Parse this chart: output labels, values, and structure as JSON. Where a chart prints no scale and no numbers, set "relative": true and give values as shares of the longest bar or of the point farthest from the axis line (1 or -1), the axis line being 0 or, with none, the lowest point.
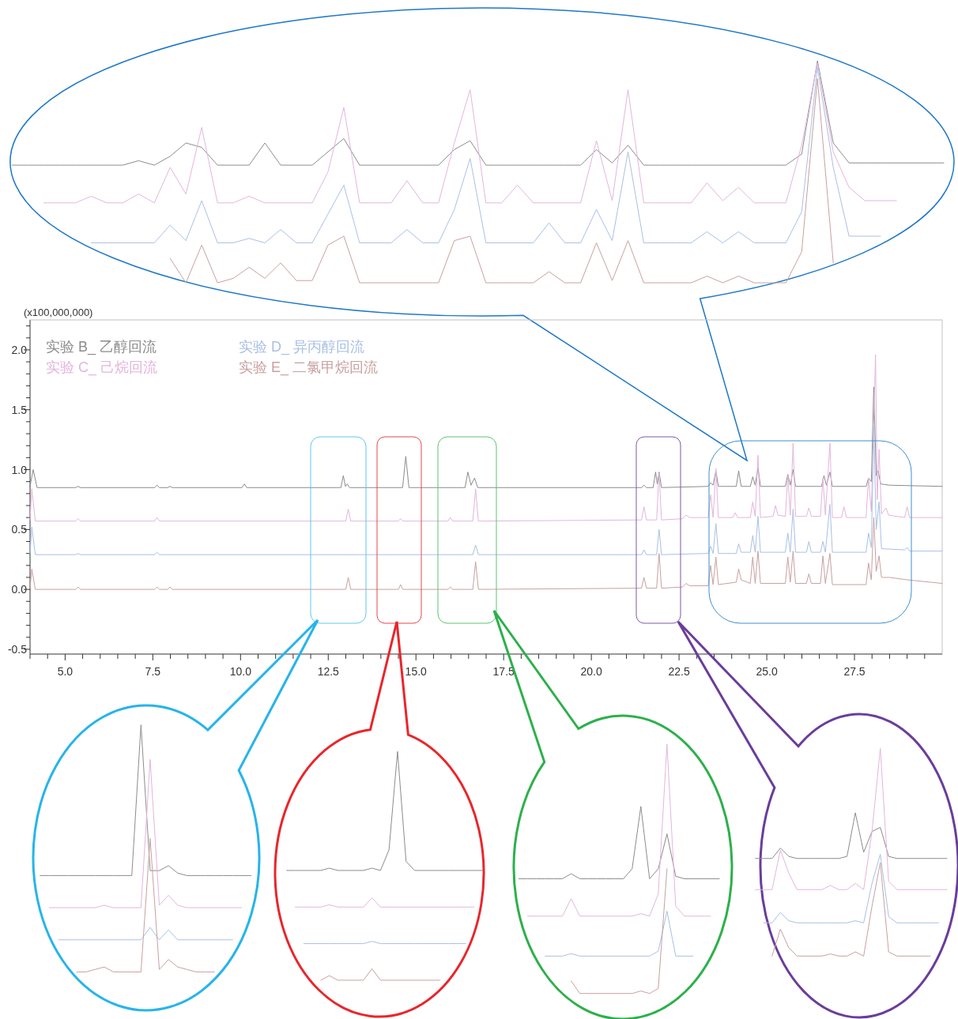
{
  "chart_data": [
    {
      "type": "line",
      "relative": true,
      "categories": [
        null,
        null,
        null,
        null,
        null,
        null,
        null,
        null,
        null,
        null,
        null,
        null,
        null,
        null,
        null,
        null,
        null,
        null,
        null,
        null,
        null,
        null,
        null,
        null,
        null,
        null,
        null,
        null,
        null,
        null,
        null,
        null,
        null,
        null,
        null,
        null,
        null,
        null,
        null,
        null,
        null,
        null,
        null,
        null,
        null,
        null,
        null,
        null,
        null,
        null,
        null,
        null,
        null,
        null,
        null,
        null,
        null,
        null,
        null,
        null
      ],
      "series": [
        {
          "color": "#8c8c8c",
          "values": [
            0.53,
            0.53,
            0.53,
            0.53,
            0.53,
            0.53,
            0.53,
            0.53,
            0.55,
            0.53,
            0.57,
            0.63,
            0.61,
            0.53,
            0.53,
            0.53,
            0.63,
            0.53,
            0.53,
            0.53,
            0.59,
            0.65,
            0.53,
            0.53,
            0.53,
            0.53,
            0.53,
            0.53,
            0.6,
            0.64,
            0.53,
            0.53,
            0.53,
            0.53,
            0.53,
            0.53,
            0.53,
            0.6,
            0.54,
            0.62,
            0.53,
            0.53,
            0.53,
            0.53,
            0.53,
            0.53,
            0.53,
            0.53,
            0.53,
            0.53,
            0.58,
            1.0,
            0.63,
            0.54,
            0.54,
            0.54,
            0.54,
            0.54,
            0.54,
            0.54
          ]
        },
        {
          "color": "#e3b5dc",
          "values": [
            null,
            null,
            0.36,
            0.36,
            0.36,
            0.39,
            0.36,
            0.36,
            0.4,
            0.36,
            0.52,
            0.4,
            0.7,
            0.36,
            0.36,
            0.39,
            0.36,
            0.36,
            0.36,
            0.36,
            0.5,
            0.79,
            0.36,
            0.36,
            0.36,
            0.46,
            0.36,
            0.36,
            0.63,
            0.87,
            0.36,
            0.36,
            0.44,
            0.36,
            0.36,
            0.36,
            0.36,
            0.64,
            0.37,
            0.87,
            0.36,
            0.36,
            0.36,
            0.36,
            0.45,
            0.37,
            0.43,
            0.36,
            0.36,
            0.36,
            0.62,
            0.99,
            0.59,
            0.43,
            0.37,
            0.37,
            0.37,
            null,
            null,
            null
          ]
        },
        {
          "color": "#a9bfe6",
          "values": [
            null,
            null,
            null,
            null,
            null,
            0.18,
            0.18,
            0.18,
            0.18,
            0.18,
            0.26,
            0.19,
            0.37,
            0.18,
            0.18,
            0.2,
            0.18,
            0.24,
            0.18,
            0.18,
            0.31,
            0.44,
            0.18,
            0.18,
            0.18,
            0.24,
            0.18,
            0.18,
            0.33,
            0.56,
            0.18,
            0.18,
            0.18,
            0.18,
            0.27,
            0.18,
            0.18,
            0.33,
            0.19,
            0.59,
            0.18,
            0.18,
            0.18,
            0.18,
            0.23,
            0.18,
            0.23,
            0.18,
            0.18,
            0.18,
            0.32,
            0.97,
            0.52,
            0.21,
            0.21,
            0.21,
            null,
            null,
            null,
            null
          ]
        },
        {
          "color": "#c9a0a0",
          "values": [
            null,
            null,
            null,
            null,
            null,
            null,
            null,
            null,
            null,
            null,
            0.11,
            0.0,
            0.17,
            0.0,
            0.02,
            0.07,
            0.02,
            0.09,
            0.01,
            0.01,
            0.17,
            0.21,
            0.0,
            0.0,
            0.0,
            0.0,
            0.0,
            0.0,
            0.19,
            0.21,
            0.0,
            0.0,
            0.0,
            0.0,
            0.05,
            0.0,
            0.0,
            0.18,
            0.01,
            0.19,
            0.0,
            0.0,
            0.0,
            0.0,
            0.03,
            0.0,
            0.03,
            0.0,
            0.0,
            0.0,
            0.14,
            0.92,
            0.09,
            null,
            null,
            null,
            null,
            null,
            null,
            null
          ]
        }
      ]
    },
    {
      "type": "line",
      "ylabel": "(x100,000,000)",
      "legend": "top left",
      "xlim": [
        4,
        30
      ],
      "ylim": [
        -0.54,
        2.25
      ],
      "xticks": [
        {
          "value": 4,
          "label": null
        },
        {
          "value": 4.5,
          "label": null
        },
        {
          "value": 5,
          "label": "5.0"
        },
        {
          "value": 5.5,
          "label": null
        },
        {
          "value": 6,
          "label": null
        },
        {
          "value": 6.5,
          "label": null
        },
        {
          "value": 7,
          "label": null
        },
        {
          "value": 7.5,
          "label": "7.5"
        },
        {
          "value": 8,
          "label": null
        },
        {
          "value": 8.5,
          "label": null
        },
        {
          "value": 9,
          "label": null
        },
        {
          "value": 9.5,
          "label": null
        },
        {
          "value": 10,
          "label": "10.0"
        },
        {
          "value": 10.5,
          "label": null
        },
        {
          "value": 11,
          "label": null
        },
        {
          "value": 11.5,
          "label": null
        },
        {
          "value": 12,
          "label": null
        },
        {
          "value": 12.5,
          "label": "12.5"
        },
        {
          "value": 13,
          "label": null
        },
        {
          "value": 13.5,
          "label": null
        },
        {
          "value": 14,
          "label": null
        },
        {
          "value": 14.5,
          "label": null
        },
        {
          "value": 15,
          "label": "15.0"
        },
        {
          "value": 15.5,
          "label": null
        },
        {
          "value": 16,
          "label": null
        },
        {
          "value": 16.5,
          "label": null
        },
        {
          "value": 17,
          "label": null
        },
        {
          "value": 17.5,
          "label": "17.5"
        },
        {
          "value": 18,
          "label": null
        },
        {
          "value": 18.5,
          "label": null
        },
        {
          "value": 19,
          "label": null
        },
        {
          "value": 19.5,
          "label": null
        },
        {
          "value": 20,
          "label": "20.0"
        },
        {
          "value": 20.5,
          "label": null
        },
        {
          "value": 21,
          "label": null
        },
        {
          "value": 21.5,
          "label": null
        },
        {
          "value": 22,
          "label": null
        },
        {
          "value": 22.5,
          "label": "22.5"
        },
        {
          "value": 23,
          "label": null
        },
        {
          "value": 23.5,
          "label": null
        },
        {
          "value": 24,
          "label": null
        },
        {
          "value": 24.5,
          "label": null
        },
        {
          "value": 25,
          "label": "25.0"
        },
        {
          "value": 25.5,
          "label": null
        },
        {
          "value": 26,
          "label": null
        },
        {
          "value": 26.5,
          "label": null
        },
        {
          "value": 27,
          "label": null
        },
        {
          "value": 27.5,
          "label": "27.5"
        },
        {
          "value": 28,
          "label": null
        },
        {
          "value": 28.5,
          "label": null
        },
        {
          "value": 29,
          "label": null
        },
        {
          "value": 29.5,
          "label": null
        }
      ],
      "yticks": [
        {
          "value": -0.5,
          "label": "-0.5"
        },
        {
          "value": -0.4,
          "label": null
        },
        {
          "value": -0.3,
          "label": null
        },
        {
          "value": -0.2,
          "label": null
        },
        {
          "value": -0.1,
          "label": null
        },
        {
          "value": 0,
          "label": "0.0"
        },
        {
          "value": 0.1,
          "label": null
        },
        {
          "value": 0.2,
          "label": null
        },
        {
          "value": 0.3,
          "label": null
        },
        {
          "value": 0.4,
          "label": null
        },
        {
          "value": 0.5,
          "label": "0.5"
        },
        {
          "value": 0.6,
          "label": null
        },
        {
          "value": 0.7,
          "label": null
        },
        {
          "value": 0.8,
          "label": null
        },
        {
          "value": 0.9,
          "label": null
        },
        {
          "value": 1,
          "label": "1.0"
        },
        {
          "value": 1.1,
          "label": null
        },
        {
          "value": 1.2,
          "label": null
        },
        {
          "value": 1.3,
          "label": null
        },
        {
          "value": 1.4,
          "label": null
        },
        {
          "value": 1.5,
          "label": "1.5"
        },
        {
          "value": 1.6,
          "label": null
        },
        {
          "value": 1.7,
          "label": null
        },
        {
          "value": 1.8,
          "label": null
        },
        {
          "value": 1.9,
          "label": null
        },
        {
          "value": 2,
          "label": "2.0"
        },
        {
          "value": 2.1,
          "label": null
        },
        {
          "value": 2.2,
          "label": null
        }
      ],
      "series": [
        {
          "name": "实验 B_ 乙醇回流",
          "color": "#8c8c8c",
          "x": [
            4.0,
            4.09,
            4.2,
            5.3,
            5.37,
            5.44,
            7.55,
            7.62,
            7.69,
            7.92,
            7.99,
            8.06,
            10.04,
            10.11,
            10.18,
            12.86,
            12.93,
            12.99,
            13.04,
            13.11,
            14.62,
            14.71,
            14.8,
            16.4,
            16.48,
            16.57,
            16.67,
            16.76,
            21.43,
            21.5,
            21.57,
            21.76,
            21.83,
            21.88,
            21.93,
            22.0,
            23.33,
            23.4,
            23.47,
            23.55,
            23.62,
            24.13,
            24.2,
            24.27,
            24.53,
            24.6,
            24.67,
            24.75,
            24.82,
            25.53,
            25.6,
            25.67,
            25.75,
            25.82,
            26.56,
            26.63,
            26.7,
            26.8,
            26.87,
            27.83,
            27.9,
            27.98,
            28.05,
            28.12,
            28.17,
            28.25,
            28.5,
            30.0
          ],
          "values": [
            0.86,
            1.0,
            0.85,
            0.85,
            0.86,
            0.85,
            0.85,
            0.87,
            0.85,
            0.85,
            0.86,
            0.85,
            0.85,
            0.88,
            0.85,
            0.85,
            0.95,
            0.86,
            0.88,
            0.85,
            0.85,
            1.11,
            0.85,
            0.85,
            0.98,
            0.87,
            0.93,
            0.85,
            0.85,
            0.87,
            0.85,
            0.85,
            0.98,
            0.88,
            0.98,
            0.85,
            0.86,
            0.89,
            0.87,
            0.99,
            0.86,
            0.86,
            0.99,
            0.86,
            0.86,
            0.94,
            0.87,
            1.02,
            0.86,
            0.86,
            0.96,
            0.87,
            1.0,
            0.86,
            0.86,
            0.95,
            0.87,
            0.98,
            0.86,
            0.86,
            0.93,
            0.9,
            1.69,
            0.95,
            0.99,
            0.88,
            0.87,
            0.86
          ]
        },
        {
          "name": "实验 C_ 己烷回流",
          "color": "#e3b5dc",
          "x": [
            4.0,
            4.05,
            4.15,
            5.3,
            5.37,
            5.44,
            7.55,
            7.62,
            7.69,
            13.0,
            13.07,
            13.14,
            14.5,
            14.56,
            14.63,
            15.91,
            15.98,
            16.05,
            16.62,
            16.7,
            16.78,
            21.43,
            21.5,
            21.57,
            21.86,
            21.93,
            22.0,
            22.6,
            22.7,
            22.8,
            23.33,
            23.4,
            23.47,
            23.55,
            23.62,
            24.03,
            24.1,
            24.17,
            24.53,
            24.6,
            24.67,
            24.75,
            24.82,
            25.18,
            25.25,
            25.32,
            25.53,
            25.6,
            25.67,
            25.75,
            25.82,
            26.13,
            26.2,
            26.27,
            26.53,
            26.6,
            26.67,
            26.8,
            26.87,
            27.13,
            27.2,
            27.27,
            27.83,
            27.9,
            27.98,
            28.1,
            28.15,
            28.2,
            28.27,
            28.4,
            28.47,
            28.93,
            29.0,
            29.07,
            30.0
          ],
          "values": [
            0.58,
            0.84,
            0.57,
            0.57,
            0.59,
            0.57,
            0.57,
            0.6,
            0.57,
            0.57,
            0.67,
            0.57,
            0.57,
            0.59,
            0.57,
            0.57,
            0.6,
            0.57,
            0.57,
            0.84,
            0.57,
            0.58,
            0.69,
            0.58,
            0.58,
            0.97,
            0.58,
            0.59,
            0.62,
            0.6,
            0.6,
            0.79,
            0.6,
            1.01,
            0.6,
            0.6,
            0.64,
            0.6,
            0.6,
            0.73,
            0.61,
            1.12,
            0.6,
            0.61,
            0.7,
            0.62,
            0.61,
            0.95,
            0.62,
            1.22,
            0.61,
            0.61,
            0.68,
            0.61,
            0.61,
            0.93,
            0.62,
            1.22,
            0.6,
            0.6,
            0.69,
            0.6,
            0.6,
            0.93,
            0.65,
            1.96,
            0.75,
            1.17,
            0.63,
            0.68,
            0.62,
            0.6,
            0.69,
            0.6,
            0.6
          ]
        },
        {
          "name": "实验 D_ 异丙醇回流",
          "color": "#a9bfe6",
          "x": [
            4.0,
            4.05,
            4.15,
            5.3,
            5.37,
            5.44,
            7.55,
            7.62,
            7.69,
            16.62,
            16.7,
            16.78,
            21.43,
            21.5,
            21.57,
            21.86,
            21.93,
            22.0,
            23.33,
            23.4,
            23.47,
            23.55,
            23.62,
            24.13,
            24.2,
            24.27,
            24.53,
            24.6,
            24.67,
            24.75,
            24.82,
            25.53,
            25.6,
            25.67,
            25.75,
            25.82,
            26.13,
            26.2,
            26.27,
            26.53,
            26.6,
            26.67,
            26.8,
            26.87,
            27.83,
            27.9,
            27.98,
            28.05,
            28.12,
            28.2,
            28.27,
            28.93,
            29.0,
            29.07,
            30.0
          ],
          "values": [
            0.3,
            0.52,
            0.29,
            0.29,
            0.3,
            0.29,
            0.29,
            0.31,
            0.29,
            0.29,
            0.37,
            0.29,
            0.29,
            0.33,
            0.29,
            0.29,
            0.5,
            0.29,
            0.3,
            0.36,
            0.3,
            0.55,
            0.3,
            0.3,
            0.38,
            0.31,
            0.31,
            0.45,
            0.31,
            0.61,
            0.31,
            0.31,
            0.47,
            0.31,
            0.67,
            0.31,
            0.31,
            0.4,
            0.31,
            0.31,
            0.4,
            0.31,
            0.71,
            0.31,
            0.31,
            0.47,
            0.35,
            1.36,
            0.5,
            0.73,
            0.34,
            0.33,
            0.35,
            0.32,
            0.32
          ]
        },
        {
          "name": "实验 E_ 二氯甲烷回流",
          "color": "#c9a0a0",
          "x": [
            4.0,
            4.05,
            4.15,
            5.3,
            5.37,
            5.44,
            7.55,
            7.62,
            7.69,
            7.92,
            7.99,
            8.06,
            13.0,
            13.07,
            13.14,
            14.5,
            14.56,
            14.63,
            15.91,
            15.98,
            16.05,
            16.62,
            16.7,
            16.78,
            21.43,
            21.5,
            21.57,
            21.86,
            21.93,
            22.0,
            22.6,
            22.7,
            22.8,
            23.33,
            23.4,
            23.47,
            23.55,
            23.62,
            24.13,
            24.2,
            24.27,
            24.53,
            24.6,
            24.67,
            24.75,
            24.82,
            25.53,
            25.6,
            25.67,
            25.75,
            25.82,
            26.13,
            26.2,
            26.27,
            26.53,
            26.6,
            26.67,
            26.8,
            26.87,
            27.83,
            27.9,
            27.98,
            28.05,
            28.12,
            28.2,
            28.27,
            28.5,
            29.0,
            30.0
          ],
          "values": [
            0.01,
            0.17,
            0.0,
            0.0,
            0.02,
            0.0,
            0.0,
            0.02,
            0.0,
            0.0,
            0.02,
            0.0,
            0.0,
            0.1,
            0.0,
            0.0,
            0.04,
            0.0,
            0.0,
            0.02,
            0.0,
            0.0,
            0.23,
            0.0,
            0.01,
            0.1,
            0.01,
            0.01,
            0.3,
            0.01,
            0.02,
            0.05,
            0.03,
            0.03,
            0.2,
            0.04,
            0.27,
            0.04,
            0.06,
            0.17,
            0.08,
            0.05,
            0.27,
            0.05,
            0.32,
            0.05,
            0.05,
            0.27,
            0.06,
            0.32,
            0.05,
            0.05,
            0.13,
            0.05,
            0.05,
            0.28,
            0.05,
            0.3,
            0.04,
            0.04,
            0.22,
            0.08,
            0.6,
            0.15,
            0.28,
            0.1,
            0.1,
            0.08,
            0.05
          ]
        }
      ]
    },
    {
      "type": "line",
      "relative": true,
      "categories": [
        null,
        null,
        null,
        null,
        null,
        null,
        null,
        null,
        null,
        null,
        null,
        null,
        null,
        null,
        null,
        null,
        null,
        null,
        null,
        null,
        null,
        null,
        null,
        null
      ],
      "series": [
        {
          "color": "#8c8c8c",
          "values": [
            0.39,
            0.39,
            0.39,
            0.39,
            0.39,
            0.39,
            0.39,
            0.39,
            0.39,
            0.39,
            0.39,
            1.0,
            0.41,
            0.41,
            0.43,
            0.4,
            0.39,
            0.39,
            0.39,
            0.39,
            0.39,
            0.39,
            0.39,
            0.39
          ]
        },
        {
          "color": "#e3b5dc",
          "values": [
            null,
            0.26,
            0.26,
            0.26,
            0.26,
            0.26,
            0.26,
            0.27,
            0.26,
            0.26,
            0.26,
            0.26,
            0.86,
            0.27,
            0.31,
            0.27,
            0.26,
            0.26,
            0.26,
            0.26,
            0.26,
            0.26,
            0.26,
            null
          ]
        },
        {
          "color": "#a9bfe6",
          "values": [
            null,
            null,
            0.13,
            0.13,
            0.13,
            0.13,
            0.13,
            0.13,
            0.13,
            0.13,
            0.13,
            0.13,
            0.18,
            0.13,
            0.17,
            0.13,
            0.13,
            0.13,
            0.13,
            0.13,
            0.13,
            0.13,
            null,
            null
          ]
        },
        {
          "color": "#c9a0a0",
          "values": [
            null,
            null,
            null,
            null,
            0.0,
            0.0,
            0.01,
            0.02,
            0.0,
            0.0,
            0.0,
            0.0,
            0.54,
            0.01,
            0.05,
            0.02,
            0.01,
            0.0,
            0.0,
            0.0,
            null,
            null,
            null,
            null
          ]
        }
      ]
    },
    {
      "type": "line",
      "relative": true,
      "categories": [
        null,
        null,
        null,
        null,
        null,
        null,
        null,
        null,
        null,
        null,
        null,
        null,
        null,
        null,
        null,
        null,
        null,
        null,
        null,
        null,
        null,
        null,
        null,
        null
      ],
      "series": [
        {
          "color": "#8c8c8c",
          "values": [
            0.48,
            0.48,
            0.48,
            0.48,
            0.48,
            0.49,
            0.48,
            0.48,
            0.48,
            0.48,
            0.49,
            0.48,
            0.57,
            1.0,
            0.52,
            0.48,
            0.48,
            0.48,
            0.48,
            0.48,
            0.48,
            0.48,
            0.48,
            0.48
          ]
        },
        {
          "color": "#e3b5dc",
          "values": [
            null,
            0.32,
            0.32,
            0.32,
            0.32,
            0.33,
            0.32,
            0.32,
            0.32,
            0.32,
            0.36,
            0.32,
            0.32,
            0.32,
            0.32,
            0.32,
            0.32,
            0.32,
            0.32,
            0.32,
            0.32,
            0.32,
            0.32,
            null
          ]
        },
        {
          "color": "#a9bfe6",
          "values": [
            null,
            null,
            0.16,
            0.16,
            0.16,
            0.16,
            0.16,
            0.16,
            0.16,
            0.16,
            0.17,
            0.16,
            0.16,
            0.16,
            0.16,
            0.16,
            0.16,
            0.16,
            0.16,
            0.16,
            0.16,
            0.16,
            null,
            null
          ]
        },
        {
          "color": "#c9a0a0",
          "values": [
            null,
            null,
            null,
            null,
            0.0,
            0.02,
            0.0,
            0.0,
            0.0,
            0.0,
            0.05,
            0.0,
            0.0,
            0.0,
            0.0,
            0.0,
            0.0,
            0.0,
            0.0,
            null,
            null,
            null,
            null,
            null
          ]
        }
      ]
    },
    {
      "type": "line",
      "relative": true,
      "categories": [
        null,
        null,
        null,
        null,
        null,
        null,
        null,
        null,
        null,
        null,
        null,
        null,
        null,
        null,
        null,
        null,
        null,
        null,
        null,
        null,
        null,
        null,
        null,
        null
      ],
      "series": [
        {
          "color": "#8c8c8c",
          "values": [
            0.46,
            0.46,
            0.46,
            0.46,
            0.46,
            0.46,
            0.48,
            0.46,
            0.46,
            0.46,
            0.46,
            0.46,
            0.46,
            0.5,
            0.75,
            0.46,
            0.5,
            0.64,
            0.47,
            0.46,
            0.46,
            0.46,
            0.46,
            0.46
          ]
        },
        {
          "color": "#e3b5dc",
          "values": [
            null,
            0.31,
            0.31,
            0.31,
            0.31,
            0.31,
            0.38,
            0.31,
            0.31,
            0.31,
            0.31,
            0.31,
            0.31,
            0.31,
            0.32,
            0.31,
            0.4,
            1.0,
            0.35,
            0.31,
            0.31,
            0.31,
            0.31,
            null
          ]
        },
        {
          "color": "#a9bfe6",
          "values": [
            null,
            null,
            null,
            0.15,
            0.15,
            0.15,
            0.16,
            0.15,
            0.15,
            0.15,
            0.15,
            0.15,
            0.15,
            0.15,
            0.15,
            0.15,
            0.17,
            0.33,
            0.15,
            0.15,
            0.15,
            null,
            null,
            null
          ]
        },
        {
          "color": "#c9a0a0",
          "values": [
            null,
            null,
            null,
            null,
            null,
            null,
            0.05,
            0.0,
            0.0,
            0.0,
            0.0,
            0.0,
            0.0,
            0.0,
            0.01,
            0.0,
            0.02,
            0.5,
            null,
            null,
            null,
            null,
            null,
            null
          ]
        }
      ]
    },
    {
      "type": "line",
      "relative": true,
      "categories": [
        null,
        null,
        null,
        null,
        null,
        null,
        null,
        null,
        null,
        null,
        null,
        null,
        null,
        null,
        null,
        null,
        null,
        null,
        null,
        null,
        null,
        null,
        null,
        null
      ],
      "series": [
        {
          "color": "#8c8c8c",
          "values": [
            0.47,
            0.47,
            0.47,
            0.52,
            0.48,
            0.47,
            0.47,
            0.47,
            0.47,
            0.47,
            0.47,
            0.48,
            0.69,
            0.5,
            0.6,
            0.62,
            0.48,
            0.47,
            0.47,
            0.47,
            0.47,
            0.47,
            0.47,
            0.47
          ]
        },
        {
          "color": "#e3b5dc",
          "values": [
            0.32,
            0.32,
            0.32,
            0.51,
            0.4,
            0.32,
            0.32,
            0.32,
            0.32,
            0.34,
            0.32,
            0.32,
            0.35,
            0.32,
            0.6,
            1.0,
            0.36,
            0.32,
            0.32,
            0.32,
            0.32,
            0.32,
            0.32,
            0.32
          ]
        },
        {
          "color": "#a9bfe6",
          "values": [
            null,
            0.16,
            0.16,
            0.21,
            0.17,
            0.16,
            0.16,
            0.16,
            0.16,
            0.16,
            0.16,
            0.16,
            0.17,
            0.16,
            0.35,
            0.49,
            0.19,
            0.16,
            0.16,
            0.16,
            0.16,
            0.16,
            0.16,
            null
          ]
        },
        {
          "color": "#c9a0a0",
          "values": [
            null,
            null,
            0.0,
            0.13,
            0.04,
            0.0,
            0.0,
            0.0,
            0.0,
            0.01,
            0.0,
            0.0,
            0.02,
            0.0,
            0.24,
            0.45,
            0.02,
            0.0,
            0.0,
            0.0,
            0.0,
            0.0,
            null,
            null
          ]
        }
      ]
    }
  ]
}
